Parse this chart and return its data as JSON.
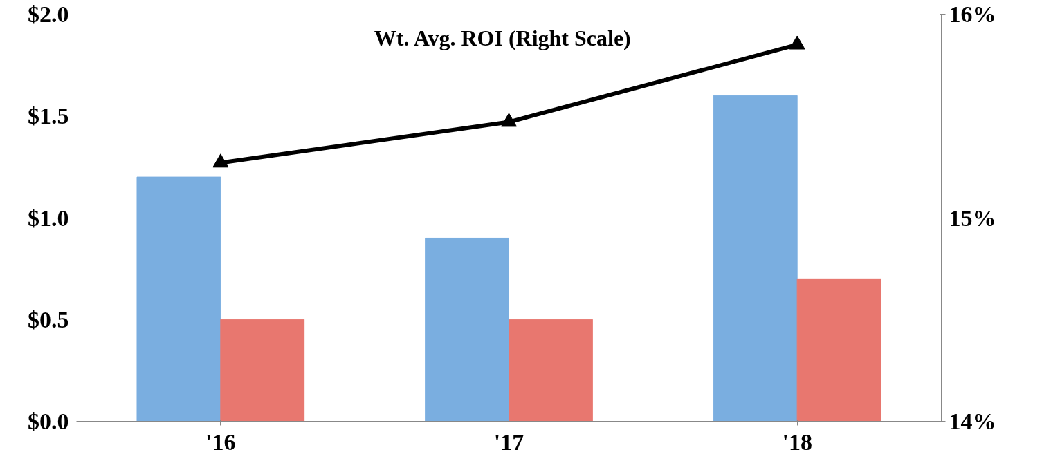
{
  "chart_data": {
    "type": "bar",
    "categories": [
      "'16",
      "'17",
      "'18"
    ],
    "series": [
      {
        "color": "#7aaee0",
        "values": [
          1.2,
          0.9,
          1.6
        ]
      },
      {
        "color": "#e8776f",
        "values": [
          0.5,
          0.5,
          0.7
        ]
      },
      {
        "name": "Wt. Avg. ROI (Right Scale)",
        "type": "line",
        "axis": "y2",
        "color": "#000000",
        "marker": "triangle",
        "values": [
          15.27,
          15.47,
          15.85
        ]
      }
    ],
    "ylim": [
      0,
      2
    ],
    "yticks": [
      {
        "value": 0,
        "label": "$0.0"
      },
      {
        "value": 0.5,
        "label": "$0.5"
      },
      {
        "value": 1,
        "label": "$1.0"
      },
      {
        "value": 1.5,
        "label": "$1.5"
      },
      {
        "value": 2,
        "label": "$2.0"
      }
    ],
    "y2lim": [
      14,
      16
    ],
    "y2ticks": [
      {
        "value": 14,
        "label": "14%"
      },
      {
        "value": 15,
        "label": "15%"
      },
      {
        "value": 16,
        "label": "16%"
      }
    ],
    "grid": false
  }
}
